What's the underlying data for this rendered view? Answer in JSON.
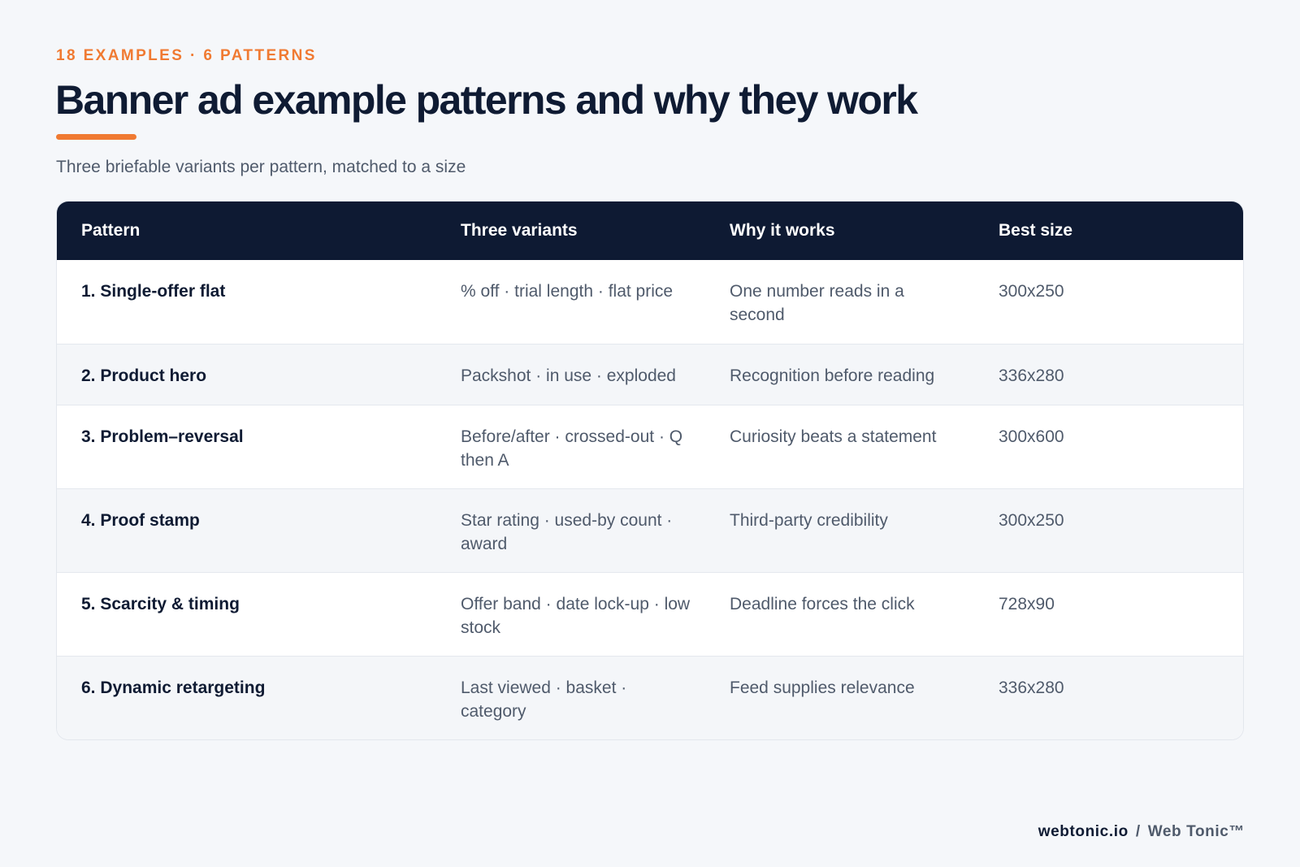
{
  "header": {
    "eyebrow": "18 EXAMPLES · 6 PATTERNS",
    "title": "Banner ad example patterns and why they work",
    "subtitle": "Three briefable variants per pattern, matched to a size"
  },
  "table": {
    "columns": [
      "Pattern",
      "Three variants",
      "Why it works",
      "Best size"
    ],
    "rows": [
      {
        "pattern": "1. Single-offer flat",
        "variants": "% off · trial length · flat price",
        "why": "One number reads in a second",
        "size": "300x250"
      },
      {
        "pattern": "2. Product hero",
        "variants": "Packshot · in use · exploded",
        "why": "Recognition before reading",
        "size": "336x280"
      },
      {
        "pattern": "3. Problem–reversal",
        "variants": "Before/after · crossed-out · Q then A",
        "why": "Curiosity beats a statement",
        "size": "300x600"
      },
      {
        "pattern": "4. Proof stamp",
        "variants": "Star rating · used-by count · award",
        "why": "Third-party credibility",
        "size": "300x250"
      },
      {
        "pattern": "5. Scarcity & timing",
        "variants": "Offer band · date lock-up · low stock",
        "why": "Deadline forces the click",
        "size": "728x90"
      },
      {
        "pattern": "6. Dynamic retargeting",
        "variants": "Last viewed · basket · category",
        "why": "Feed supplies relevance",
        "size": "336x280"
      }
    ]
  },
  "footer": {
    "site": "webtonic.io",
    "separator": "/",
    "brand": "Web Tonic™"
  },
  "colors": {
    "accent": "#f07a32",
    "header_bg": "#0e1a33",
    "page_bg": "#f5f7fa"
  }
}
